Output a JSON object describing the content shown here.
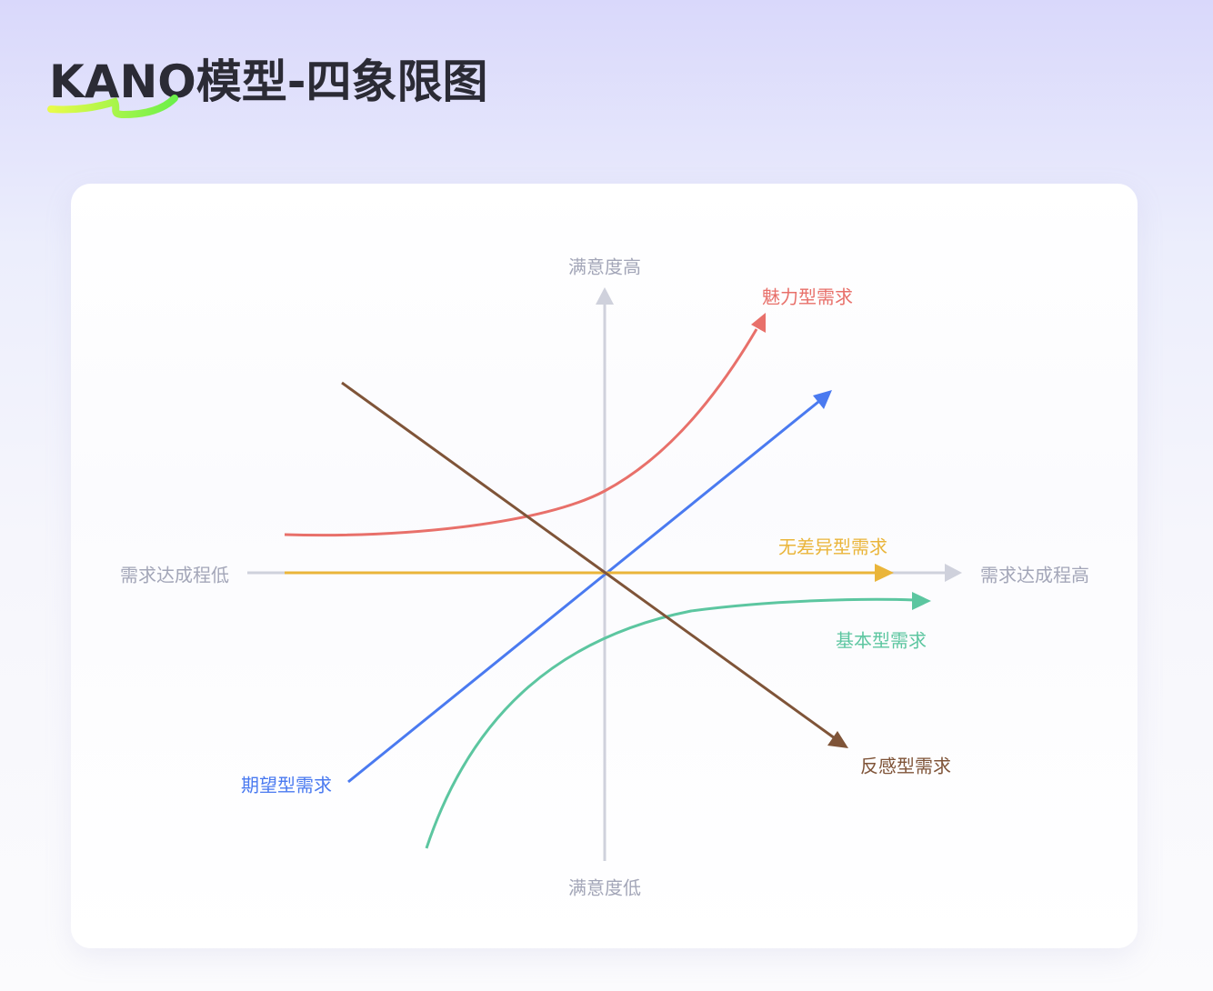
{
  "title": "KANO模型-四象限图",
  "axes": {
    "y_top": "满意度高",
    "y_bottom": "满意度低",
    "x_left": "需求达成程低",
    "x_right": "需求达成程高"
  },
  "curves": [
    {
      "label": "魅力型需求",
      "color": "#e8706a"
    },
    {
      "label": "期望型需求",
      "color": "#4a7af0"
    },
    {
      "label": "无差异型需求",
      "color": "#eab53a"
    },
    {
      "label": "基本型需求",
      "color": "#5cc6a0"
    },
    {
      "label": "反感型需求",
      "color": "#7f5438"
    }
  ],
  "colors": {
    "axis": "#cfd1dc",
    "title": "#2b2b35",
    "underline": [
      "#e8fb4a",
      "#6cf04a"
    ]
  }
}
